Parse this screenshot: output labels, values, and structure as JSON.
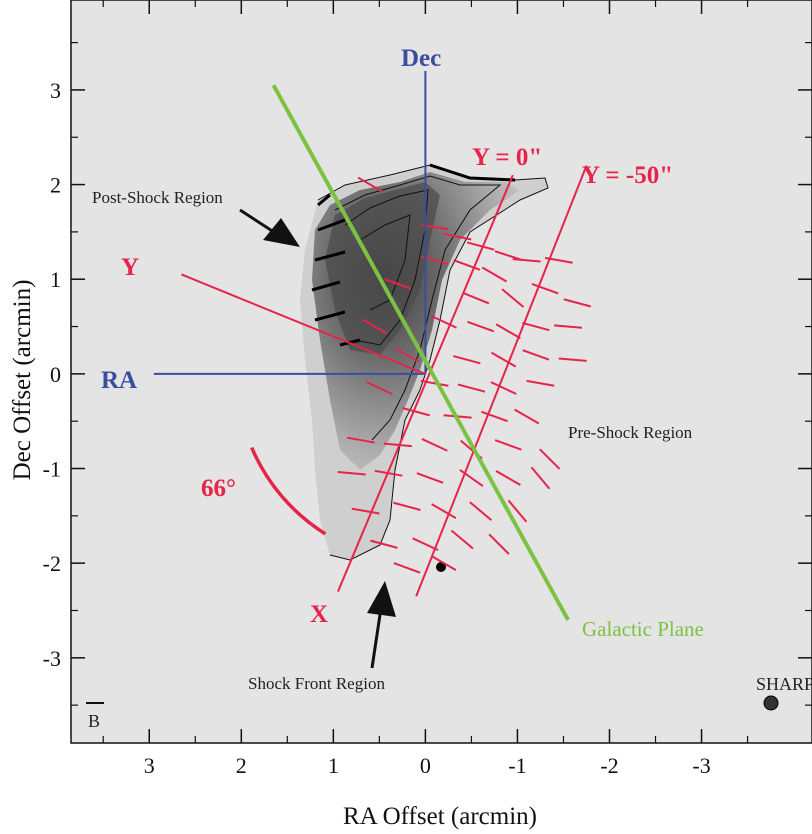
{
  "chart_data": {
    "type": "scatter",
    "xlabel": "RA Offset (arcmin)",
    "ylabel": "Dec Offset (arcmin)",
    "xlim": [
      3.85,
      -4.2
    ],
    "ylim": [
      -3.9,
      3.95
    ],
    "x_reversed": true,
    "x_ticks": [
      3,
      2,
      1,
      0,
      -1,
      -2,
      -3
    ],
    "y_ticks": [
      3,
      2,
      1,
      0,
      -1,
      -2,
      -3
    ],
    "annotations": {
      "post_shock": "Post-Shock Region",
      "pre_shock": "Pre-Shock Region",
      "shock_front": "Shock Front Region",
      "galactic_plane": "Galactic Plane",
      "ra": "RA",
      "dec": "Dec",
      "x_axis": "X",
      "y_axis": "Y",
      "y0": "Y = 0\"",
      "y50": "Y = -50\"",
      "angle": "66°",
      "sharp": "SHARP",
      "band": "B"
    },
    "lines": {
      "galactic_plane": [
        [
          1.65,
          3.05
        ],
        [
          -1.55,
          -2.6
        ]
      ],
      "x_axis": [
        [
          0.95,
          -2.3
        ],
        [
          -0.95,
          2.1
        ]
      ],
      "y_axis": [
        [
          2.65,
          1.05
        ],
        [
          0.0,
          0.0
        ]
      ],
      "y0_line": [
        [
          0.95,
          -2.3
        ],
        [
          -0.95,
          2.1
        ]
      ],
      "y50_line": [
        [
          0.1,
          -2.35
        ],
        [
          -1.75,
          2.2
        ]
      ],
      "ra_axis": [
        [
          2.95,
          0.0
        ],
        [
          0.0,
          0.0
        ]
      ],
      "dec_axis": [
        [
          0.0,
          0.0
        ],
        [
          0.0,
          3.2
        ]
      ]
    },
    "angle_arc": {
      "center": [
        0.0,
        0.0
      ],
      "radius": 2.05,
      "from_deg": 203,
      "to_deg": 238
    },
    "vectors": [
      [
        0.6,
        2.0,
        150
      ],
      [
        -0.1,
        1.55,
        172
      ],
      [
        -0.35,
        1.45,
        168
      ],
      [
        -0.6,
        1.35,
        165
      ],
      [
        -0.9,
        1.25,
        162
      ],
      [
        -0.1,
        1.2,
        165
      ],
      [
        -0.45,
        1.15,
        160
      ],
      [
        -0.75,
        1.05,
        150
      ],
      [
        -1.1,
        1.2,
        175
      ],
      [
        -1.45,
        1.2,
        170
      ],
      [
        0.3,
        0.95,
        160
      ],
      [
        -0.55,
        0.8,
        158
      ],
      [
        -0.95,
        0.8,
        140
      ],
      [
        -1.3,
        0.9,
        160
      ],
      [
        -1.65,
        0.75,
        165
      ],
      [
        0.55,
        0.5,
        150
      ],
      [
        -0.2,
        0.55,
        155
      ],
      [
        -0.6,
        0.5,
        160
      ],
      [
        -0.9,
        0.45,
        150
      ],
      [
        -1.2,
        0.5,
        165
      ],
      [
        -1.55,
        0.5,
        175
      ],
      [
        0.2,
        0.2,
        150
      ],
      [
        -0.45,
        0.15,
        165
      ],
      [
        -0.85,
        0.15,
        150
      ],
      [
        -1.2,
        0.2,
        160
      ],
      [
        -1.6,
        0.15,
        175
      ],
      [
        0.5,
        -0.15,
        155
      ],
      [
        -0.1,
        -0.1,
        170
      ],
      [
        -0.5,
        -0.15,
        165
      ],
      [
        -0.85,
        -0.15,
        155
      ],
      [
        -1.25,
        -0.1,
        170
      ],
      [
        0.1,
        -0.4,
        165
      ],
      [
        -0.35,
        -0.45,
        175
      ],
      [
        -0.75,
        -0.45,
        160
      ],
      [
        -1.1,
        -0.45,
        150
      ],
      [
        0.7,
        -0.7,
        170
      ],
      [
        0.3,
        -0.75,
        175
      ],
      [
        -0.1,
        -0.75,
        155
      ],
      [
        -0.5,
        -0.8,
        140
      ],
      [
        -0.9,
        -0.75,
        160
      ],
      [
        -1.35,
        -0.9,
        135
      ],
      [
        0.8,
        -1.05,
        175
      ],
      [
        0.4,
        -1.05,
        170
      ],
      [
        -0.05,
        -1.1,
        160
      ],
      [
        -0.5,
        -1.1,
        145
      ],
      [
        -0.9,
        -1.1,
        150
      ],
      [
        -1.25,
        -1.1,
        130
      ],
      [
        0.65,
        -1.45,
        170
      ],
      [
        0.2,
        -1.4,
        165
      ],
      [
        -0.2,
        -1.45,
        150
      ],
      [
        -0.6,
        -1.45,
        140
      ],
      [
        -1.0,
        -1.45,
        130
      ],
      [
        0.45,
        -1.8,
        165
      ],
      [
        0.0,
        -1.8,
        155
      ],
      [
        -0.4,
        -1.75,
        140
      ],
      [
        -0.8,
        -1.8,
        135
      ],
      [
        0.2,
        -2.05,
        160
      ],
      [
        -0.2,
        -2.0,
        150
      ]
    ]
  }
}
